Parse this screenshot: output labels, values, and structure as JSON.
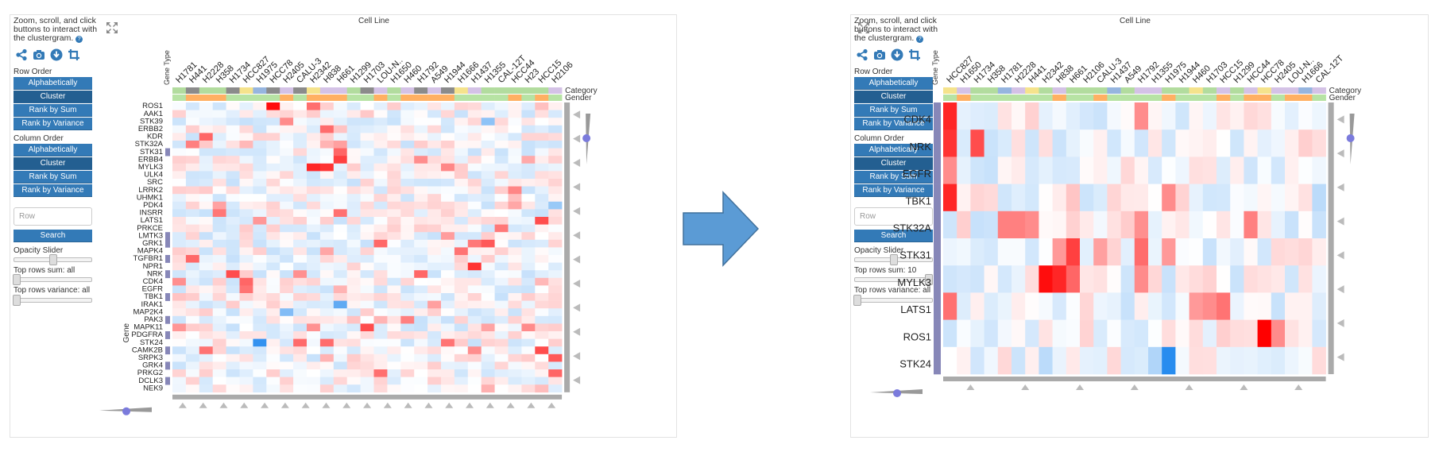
{
  "colors": {
    "accent": "#337ab7",
    "accent_active": "#235f91",
    "up": "#ff0000",
    "down": "#1c86ee",
    "arrow": "#5b9bd5"
  },
  "icons": [
    "share-icon",
    "camera-icon",
    "download-icon",
    "crop-icon",
    "expand-icon"
  ],
  "left": {
    "instructions": "Zoom, scroll, and click buttons to interact with the clustergram.",
    "help": "?",
    "col_title": "Cell Line",
    "row_title": "Gene",
    "cat_label": "Category",
    "gender_label": "Gender",
    "gene_type": "Gene Type",
    "row_order": "Row Order",
    "col_order": "Column Order",
    "buttons": [
      "Alphabetically",
      "Cluster",
      "Rank by Sum",
      "Rank by Variance"
    ],
    "row_placeholder": "Row",
    "search": "Search",
    "opacity": "Opacity Slider",
    "top_sum": "Top rows sum: all",
    "top_var": "Top rows variance: all",
    "rows": [
      "ROS1",
      "AAK1",
      "STK39",
      "ERBB2",
      "KDR",
      "STK32A",
      "STK31",
      "ERBB4",
      "MYLK3",
      "ULK4",
      "SRC",
      "LRRK2",
      "UHMK1",
      "PDK4",
      "INSRR",
      "LATS1",
      "PRKCE",
      "LMTK3",
      "GRK1",
      "MAPK4",
      "TGFBR1",
      "NPR1",
      "NRK",
      "CDK4",
      "EGFR",
      "TBK1",
      "IRAK1",
      "MAP2K4",
      "PAK3",
      "MAPK11",
      "PDGFRA",
      "STK24",
      "CAMK2B",
      "SRPK3",
      "GRK4",
      "PRKG2",
      "DCLK3",
      "NEK9"
    ],
    "cols": [
      "H1781",
      "H441",
      "H2228",
      "H358",
      "H1734",
      "HCC827",
      "H1975",
      "HCC78",
      "H2405",
      "CALU-3",
      "H2342",
      "H838",
      "H661",
      "H1299",
      "H1703",
      "LOU-N..",
      "H1650",
      "H460",
      "H1792",
      "A549",
      "H1944",
      "H1666",
      "H1437",
      "H1355",
      "CAL-12T",
      "HCC44",
      "H23",
      "HCC15",
      "H2106"
    ]
  },
  "right": {
    "instructions": "Zoom, scroll, and click buttons to interact with the clustergram.",
    "help": "?",
    "col_title": "Cell Line",
    "cat_label": "Category",
    "gender_label": "Gender",
    "gene_type": "Gene Type",
    "row_order": "Row Order",
    "col_order": "Column Order",
    "buttons": [
      "Alphabetically",
      "Cluster",
      "Rank by Sum",
      "Rank by Variance"
    ],
    "row_placeholder": "Row",
    "search": "Search",
    "opacity": "Opacity Slider",
    "top_sum": "Top rows sum: 10",
    "top_var": "Top rows variance: all",
    "rows": [
      "CDK4",
      "NRK",
      "EGFR",
      "TBK1",
      "STK32A",
      "STK31",
      "MYLK3",
      "LATS1",
      "ROS1",
      "STK24"
    ],
    "cols": [
      "HCC827",
      "H1650",
      "H1734",
      "H358",
      "H1781",
      "H2228",
      "H441",
      "H2342",
      "H838",
      "H661",
      "H2106",
      "CALU-3",
      "H1437",
      "A549",
      "H1792",
      "H1355",
      "H1975",
      "H1944",
      "H460",
      "H1703",
      "HCC15",
      "H1299",
      "HCC44",
      "HCC78",
      "H2405",
      "LOU-N..",
      "H1666",
      "CAL-12T"
    ]
  }
}
